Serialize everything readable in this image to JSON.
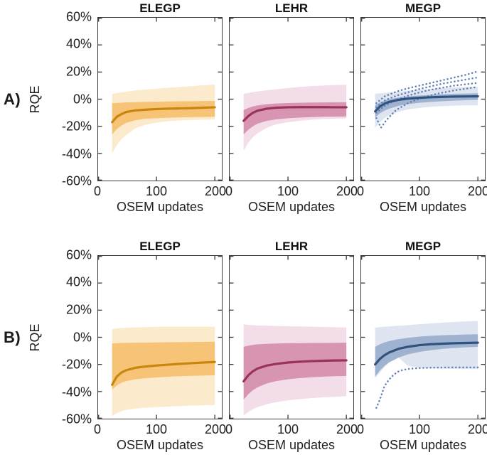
{
  "chart_data": {
    "type": "line",
    "description": "2x3 grid of shaded-band line plots (median with inner/outer percentile bands, some dotted individual traces)",
    "xlabel": "OSEM updates",
    "ylabel": "RQE",
    "xlim": [
      0,
      212
    ],
    "ylim": [
      -60,
      60
    ],
    "grid": false,
    "x_ticks": [
      0,
      100,
      200
    ],
    "x_tick_labels": [
      "0",
      "100",
      "200"
    ],
    "y_ticks": [
      60,
      40,
      20,
      0,
      -20,
      -40,
      -60
    ],
    "y_tick_labels": [
      "60%",
      "40%",
      "20%",
      "0%",
      "-20%",
      "-40%",
      "-60%"
    ],
    "rows": [
      {
        "label": "A)",
        "panels": [
          {
            "title": "ELEGP",
            "colors": {
              "line": "#C8860D",
              "inner": "#F6C377",
              "outer": "#FBEACC",
              "dots": "#C8860D"
            },
            "x": [
              24,
              32,
              40,
              48,
              64,
              80,
              100,
              120,
              140,
              160,
              180,
              200
            ],
            "median": [
              -17,
              -13,
              -11,
              -9.5,
              -8.3,
              -7.8,
              -7.3,
              -7,
              -6.8,
              -6.6,
              -6.3,
              -6
            ],
            "inner_top": [
              -3,
              -2.8,
              -2.6,
              -2.4,
              -2.2,
              -2,
              -1.9,
              -1.7,
              -1.6,
              -1.5,
              -1.4,
              -1.3
            ],
            "inner_bottom": [
              -26,
              -22,
              -19.5,
              -17.5,
              -15.5,
              -14.5,
              -14,
              -13.7,
              -13.4,
              -13.2,
              -13.1,
              -13
            ],
            "outer_top": [
              4,
              4.5,
              5,
              5.5,
              6.5,
              7,
              7.7,
              8.4,
              9,
              9.6,
              10.2,
              10.8
            ],
            "outer_bottom": [
              -40,
              -34,
              -29.5,
              -26.5,
              -21.5,
              -19,
              -17.3,
              -16.3,
              -15.7,
              -15.3,
              -15.1,
              -15
            ],
            "dotted": []
          },
          {
            "title": "LEHR",
            "colors": {
              "line": "#99325C",
              "inner": "#D795B2",
              "outer": "#F3DDE8",
              "dots": "#99325C"
            },
            "x": [
              24,
              32,
              40,
              48,
              64,
              80,
              100,
              120,
              140,
              160,
              180,
              200
            ],
            "median": [
              -16,
              -12.5,
              -10,
              -8.5,
              -7,
              -6.3,
              -6,
              -5.9,
              -5.9,
              -5.9,
              -6,
              -6
            ],
            "inner_top": [
              -8,
              -6.5,
              -5.4,
              -4.6,
              -3.7,
              -3.2,
              -2.9,
              -2.7,
              -2.5,
              -2.4,
              -2.3,
              -2.3
            ],
            "inner_bottom": [
              -26,
              -22.5,
              -20,
              -18,
              -16,
              -14.9,
              -14.1,
              -13.6,
              -13.2,
              -13,
              -12.9,
              -12.8
            ],
            "outer_top": [
              4,
              4.6,
              5.2,
              5.7,
              6.6,
              7.3,
              8.2,
              9,
              9.6,
              10,
              10.4,
              10.6
            ],
            "outer_bottom": [
              -38,
              -32,
              -28,
              -25,
              -21,
              -18.5,
              -17,
              -16,
              -15.2,
              -14.7,
              -14.4,
              -14.2
            ],
            "dotted": []
          },
          {
            "title": "MEGP",
            "colors": {
              "line": "#2F537E",
              "inner": "#9FB3D1",
              "outer": "#DEE4F0",
              "dots": "#6080B5"
            },
            "x": [
              24,
              32,
              40,
              48,
              64,
              80,
              100,
              120,
              140,
              160,
              180,
              200
            ],
            "median": [
              -9,
              -5.5,
              -3.3,
              -2,
              -0.5,
              0.4,
              1,
              1.4,
              1.7,
              1.9,
              2,
              2.1
            ],
            "inner_top": [
              -4.5,
              -2.5,
              -1,
              0,
              1.2,
              2,
              2.7,
              3.2,
              3.6,
              3.9,
              4.1,
              4.3
            ],
            "inner_bottom": [
              -13.5,
              -10.5,
              -8.5,
              -7,
              -5,
              -3.7,
              -2.7,
              -2,
              -1.5,
              -1.1,
              -0.8,
              -0.6
            ],
            "outer_top": [
              4,
              4.3,
              4.6,
              5,
              5.6,
              6.2,
              7,
              7.6,
              8.2,
              8.6,
              9,
              9.2
            ],
            "outer_bottom": [
              -21,
              -17,
              -14,
              -12,
              -9.3,
              -7.6,
              -6.4,
              -5.6,
              -5.1,
              -4.8,
              -4.6,
              -4.5
            ],
            "dotted": [
              {
                "x": [
                  26,
                  40,
                  60,
                  80,
                  100,
                  120,
                  140,
                  160,
                  180,
                  200
                ],
                "y": [
                  -3,
                  2,
                  5.5,
                  8,
                  10,
                  12,
                  14,
                  16,
                  18,
                  20.5
                ]
              },
              {
                "x": [
                  26,
                  40,
                  60,
                  80,
                  100,
                  120,
                  140,
                  160,
                  180,
                  200
                ],
                "y": [
                  -6,
                  -1,
                  2.5,
                  5,
                  7.5,
                  9.5,
                  11.5,
                  13,
                  14.5,
                  16
                ]
              },
              {
                "x": [
                  26,
                  40,
                  60,
                  80,
                  100,
                  120,
                  140,
                  160,
                  180,
                  200
                ],
                "y": [
                  -10,
                  -5,
                  -0.5,
                  2.5,
                  5,
                  7,
                  8.5,
                  10,
                  11,
                  12
                ]
              },
              {
                "x": [
                  26,
                  34,
                  44,
                  60,
                  80,
                  100,
                  130,
                  160,
                  200
                ],
                "y": [
                  -14,
                  -21,
                  -15,
                  -8,
                  -3,
                  0.5,
                  4,
                  6.5,
                  9
                ]
              }
            ]
          }
        ]
      },
      {
        "label": "B)",
        "panels": [
          {
            "title": "ELEGP",
            "colors": {
              "line": "#C8860D",
              "inner": "#F6C377",
              "outer": "#FBEACC",
              "dots": "#C8860D"
            },
            "x": [
              24,
              32,
              40,
              48,
              64,
              80,
              100,
              120,
              140,
              160,
              180,
              200
            ],
            "median": [
              -35,
              -29,
              -26,
              -24.3,
              -22.5,
              -21.6,
              -20.8,
              -20.2,
              -19.6,
              -19.1,
              -18.6,
              -18.2
            ],
            "inner_top": [
              -4.5,
              -4.3,
              -4.2,
              -4.1,
              -4,
              -3.9,
              -3.8,
              -3.7,
              -3.6,
              -3.5,
              -3.4,
              -3.3
            ],
            "inner_bottom": [
              -38.5,
              -35.5,
              -33.5,
              -32.3,
              -31,
              -30.2,
              -29.6,
              -29.1,
              -28.7,
              -28.4,
              -28.2,
              -28
            ],
            "outer_top": [
              6,
              6.5,
              6.8,
              7,
              7.3,
              7.5,
              7.7,
              7.8,
              7.8,
              7.8,
              7.8,
              7.8
            ],
            "outer_bottom": [
              -58,
              -56,
              -54.5,
              -53.5,
              -52.5,
              -52,
              -51.5,
              -51,
              -50.7,
              -50.4,
              -50.2,
              -50
            ],
            "dotted": []
          },
          {
            "title": "LEHR",
            "colors": {
              "line": "#99325C",
              "inner": "#D795B2",
              "outer": "#F3DDE8",
              "dots": "#99325C"
            },
            "x": [
              24,
              32,
              40,
              48,
              64,
              80,
              100,
              120,
              140,
              160,
              180,
              200
            ],
            "median": [
              -32.5,
              -28,
              -25,
              -23,
              -20.8,
              -19.6,
              -18.6,
              -18,
              -17.6,
              -17.3,
              -17.1,
              -17
            ],
            "inner_top": [
              -7,
              -6.2,
              -5.6,
              -5.2,
              -4.8,
              -4.6,
              -4.4,
              -4.3,
              -4.2,
              -4.2,
              -4.1,
              -4
            ],
            "inner_bottom": [
              -46,
              -42,
              -39,
              -36.8,
              -34,
              -32.3,
              -31,
              -30.1,
              -29.5,
              -29,
              -28.7,
              -28.5
            ],
            "outer_top": [
              9.5,
              9.2,
              9,
              8.8,
              8.5,
              8.3,
              8.1,
              8,
              7.8,
              7.6,
              7.4,
              7.2
            ],
            "outer_bottom": [
              -57.5,
              -55,
              -53,
              -51.5,
              -49.3,
              -47.8,
              -46.5,
              -45.6,
              -44.9,
              -44.3,
              -43.8,
              -43.4
            ],
            "dotted": []
          },
          {
            "title": "MEGP",
            "colors": {
              "line": "#2F537E",
              "inner": "#9FB3D1",
              "outer": "#DEE4F0",
              "dots": "#6080B5"
            },
            "x": [
              24,
              32,
              40,
              48,
              64,
              80,
              100,
              120,
              140,
              160,
              180,
              200
            ],
            "median": [
              -20,
              -16,
              -13.2,
              -11.2,
              -8.5,
              -7,
              -5.8,
              -5.1,
              -4.7,
              -4.4,
              -4.2,
              -4
            ],
            "inner_top": [
              -7,
              -5.2,
              -3.8,
              -2.8,
              -1.4,
              -0.4,
              0.5,
              1.1,
              1.5,
              1.8,
              2,
              2.2
            ],
            "inner_bottom": [
              -29,
              -24.5,
              -21,
              -18.5,
              -15,
              -12.6,
              -10.8,
              -9.5,
              -8.5,
              -7.9,
              -7.4,
              -7
            ],
            "outer_top": [
              7,
              7.5,
              7.8,
              8,
              8.5,
              9,
              9.6,
              10.2,
              10.8,
              11.3,
              11.7,
              12
            ],
            "outer_bottom": [
              -30,
              -26,
              -22,
              -18.5,
              -15,
              -21,
              -22.5,
              -23,
              -23.2,
              -23.3,
              -23.4,
              -23.5
            ],
            "dotted": [
              {
                "x": [
                  26,
                  32,
                  40,
                  48,
                  56,
                  64,
                  72,
                  84,
                  100,
                  120,
                  140,
                  160,
                  180,
                  200
                ],
                "y": [
                  -52,
                  -46,
                  -36,
                  -31,
                  -27.5,
                  -25.2,
                  -24,
                  -23.2,
                  -22.7,
                  -22.4,
                  -22.3,
                  -22.2,
                  -22.2,
                  -22.2
                ]
              }
            ]
          }
        ]
      }
    ],
    "style": {
      "axis_color": "#3b3b3b",
      "text_color": "#1a1a1a",
      "background": "#ffffff"
    }
  }
}
